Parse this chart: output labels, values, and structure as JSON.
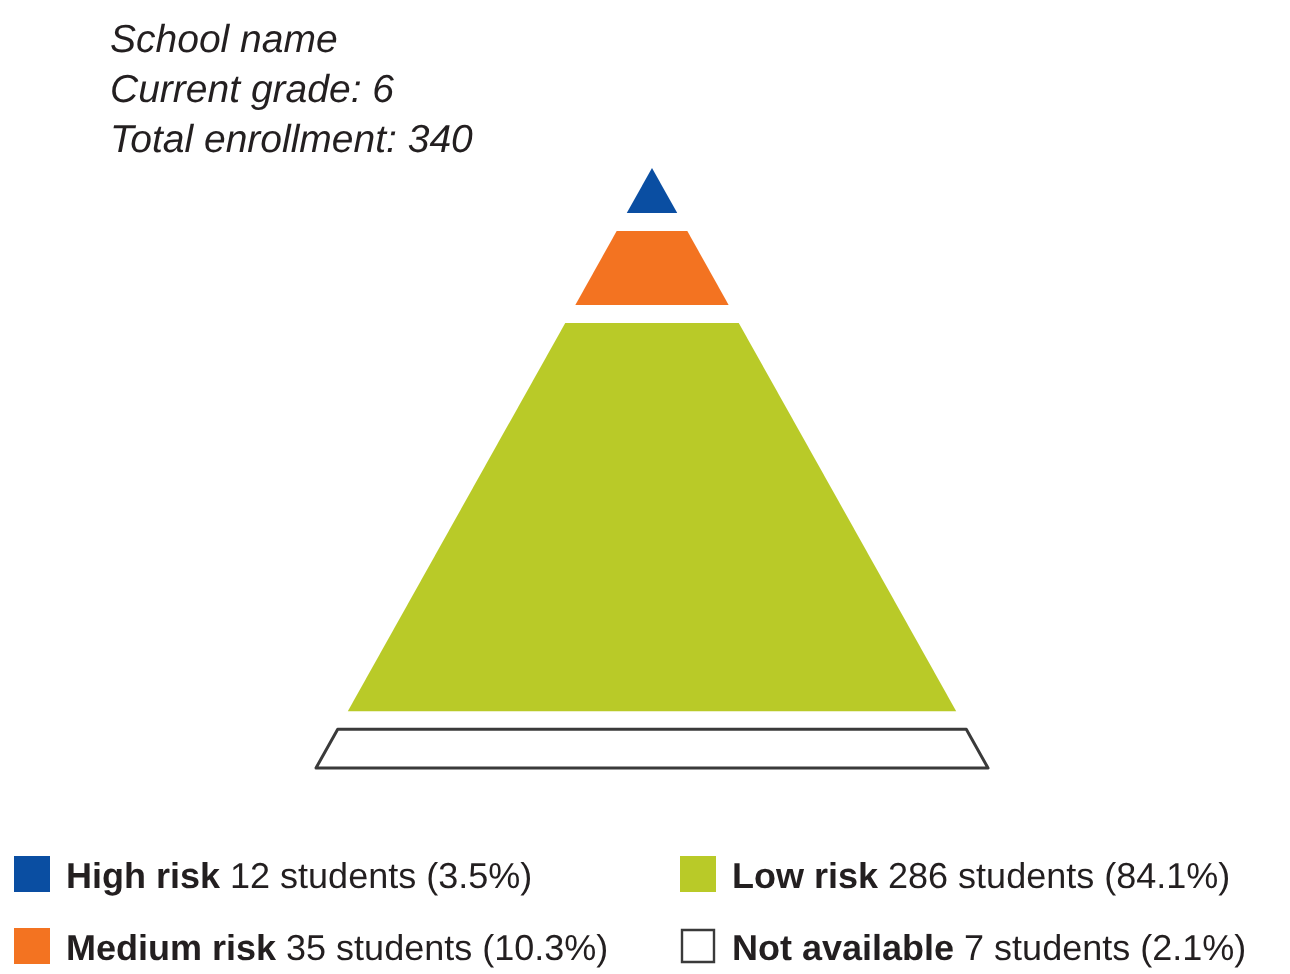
{
  "chart_data": {
    "type": "other",
    "title": "School name",
    "subtitle": "Current grade: 6",
    "annotations": [
      "Total enrollment: 340"
    ],
    "categories": [
      "High risk",
      "Medium risk",
      "Low risk",
      "Not available"
    ],
    "values": [
      12,
      35,
      286,
      7
    ],
    "value_labels": [
      "12 students (3.5%)",
      "35 students (10.3%)",
      "286 students (84.1%)",
      "7 students (2.1%)"
    ],
    "colors": [
      "#0a4ea2",
      "#f37321",
      "#b9ca28",
      "#ffffff"
    ]
  }
}
